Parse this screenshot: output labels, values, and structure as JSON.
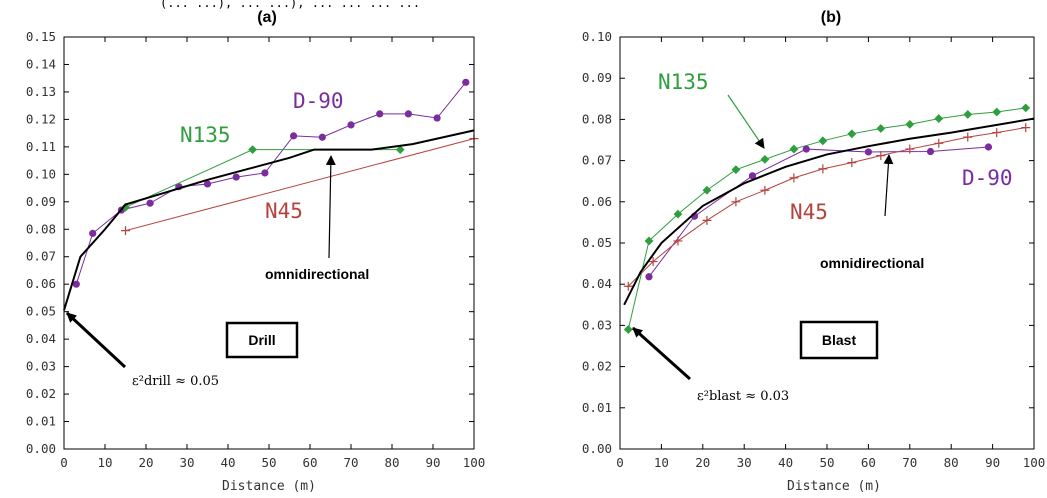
{
  "header": "(... ...), ... ...), ... ... ... ...",
  "colors": {
    "D-90": "#7b2c9e",
    "N135": "#2e9e3e",
    "N45": "#b5433d",
    "omnidirectional": "#000000"
  },
  "chart_data": [
    {
      "type": "line",
      "title": "(a)",
      "xlabel": "Distance (m)",
      "ylabel": "",
      "xlim": [
        0,
        100
      ],
      "ylim": [
        0,
        0.15
      ],
      "xticks": [
        "0",
        "10",
        "20",
        "30",
        "40",
        "50",
        "60",
        "70",
        "80",
        "90",
        "100"
      ],
      "yticks": [
        "0.00",
        "0.01",
        "0.02",
        "0.03",
        "0.04",
        "0.05",
        "0.06",
        "0.07",
        "0.08",
        "0.09",
        "0.10",
        "0.11",
        "0.12",
        "0.13",
        "0.14",
        "0.15"
      ],
      "box_label": "Drill",
      "annotation": "omnidirectional",
      "nugget_label": "ε²drill ≈ 0.05",
      "nugget_value": 0.05,
      "series": [
        {
          "name": "D-90",
          "marker": "circle",
          "x": [
            3,
            7,
            14,
            21,
            28,
            35,
            42,
            49,
            56,
            63,
            70,
            77,
            84,
            91,
            98
          ],
          "y": [
            0.06,
            0.0785,
            0.087,
            0.0895,
            0.0955,
            0.0965,
            0.099,
            0.1005,
            0.114,
            0.1135,
            0.118,
            0.122,
            0.122,
            0.1205,
            0.1335
          ]
        },
        {
          "name": "N135",
          "marker": "diamond",
          "x": [
            15,
            46,
            82
          ],
          "y": [
            0.088,
            0.109,
            0.109
          ]
        },
        {
          "name": "N45",
          "marker": "plus",
          "x": [
            15,
            100
          ],
          "y": [
            0.0795,
            0.113
          ]
        },
        {
          "name": "omnidirectional",
          "marker": "none",
          "x": [
            0,
            4,
            10,
            15,
            25,
            35,
            45,
            55,
            61,
            75,
            85,
            100
          ],
          "y": [
            0.0505,
            0.07,
            0.08,
            0.089,
            0.0935,
            0.098,
            0.102,
            0.106,
            0.109,
            0.109,
            0.111,
            0.116
          ]
        }
      ]
    },
    {
      "type": "line",
      "title": "(b)",
      "xlabel": "Distance (m)",
      "ylabel": "",
      "xlim": [
        0,
        100
      ],
      "ylim": [
        0,
        0.1
      ],
      "xticks": [
        "0",
        "10",
        "20",
        "30",
        "40",
        "50",
        "60",
        "70",
        "80",
        "90",
        "100"
      ],
      "yticks": [
        "0.00",
        "0.01",
        "0.02",
        "0.03",
        "0.04",
        "0.05",
        "0.06",
        "0.07",
        "0.08",
        "0.09",
        "0.10"
      ],
      "box_label": "Blast",
      "annotation": "omnidirectional",
      "nugget_label": "ε²blast ≈ 0.03",
      "nugget_value": 0.03,
      "series": [
        {
          "name": "N135",
          "marker": "diamond",
          "x": [
            2,
            7,
            14,
            21,
            28,
            35,
            42,
            49,
            56,
            63,
            70,
            77,
            84,
            91,
            98
          ],
          "y": [
            0.029,
            0.0505,
            0.057,
            0.0628,
            0.0678,
            0.0703,
            0.0728,
            0.0748,
            0.0765,
            0.0778,
            0.0788,
            0.0802,
            0.0812,
            0.0818,
            0.0828
          ]
        },
        {
          "name": "D-90",
          "marker": "circle",
          "x": [
            7,
            18,
            32,
            45,
            60,
            75,
            89
          ],
          "y": [
            0.0418,
            0.0565,
            0.0663,
            0.0728,
            0.0721,
            0.0722,
            0.0733
          ]
        },
        {
          "name": "N45",
          "marker": "plus",
          "x": [
            2,
            8,
            14,
            21,
            28,
            35,
            42,
            49,
            56,
            63,
            70,
            77,
            84,
            91,
            98
          ],
          "y": [
            0.0395,
            0.0455,
            0.0505,
            0.0555,
            0.06,
            0.0628,
            0.0658,
            0.068,
            0.0695,
            0.0712,
            0.0728,
            0.0742,
            0.0757,
            0.0768,
            0.078
          ]
        },
        {
          "name": "omnidirectional",
          "marker": "none",
          "x": [
            1,
            5,
            10,
            20,
            30,
            40,
            50,
            60,
            70,
            80,
            90,
            100
          ],
          "y": [
            0.035,
            0.043,
            0.05,
            0.059,
            0.0645,
            0.0685,
            0.0715,
            0.0735,
            0.0753,
            0.0768,
            0.0785,
            0.0802
          ]
        }
      ]
    }
  ]
}
